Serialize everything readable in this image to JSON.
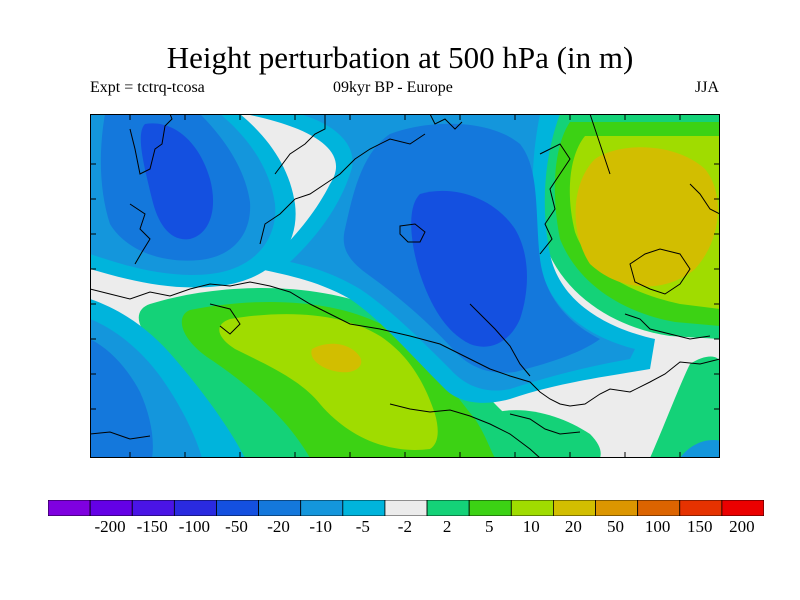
{
  "title": "Height perturbation at 500 hPa (in m)",
  "subtitle_left": "Expt = tctrq-tcosa",
  "subtitle_center": "09kyr BP - Europe",
  "subtitle_right": "JJA",
  "colorbar": {
    "labels": [
      "-200",
      "-150",
      "-100",
      "-50",
      "-20",
      "-10",
      "-5",
      "-2",
      "2",
      "5",
      "10",
      "20",
      "50",
      "100",
      "150",
      "200"
    ],
    "colors": [
      "#7f00e0",
      "#6400e6",
      "#4a14e6",
      "#2a2ae0",
      "#1450e0",
      "#1478dc",
      "#1496dc",
      "#00b4dc",
      "#ececec",
      "#14d278",
      "#3cd214",
      "#a0dc00",
      "#d2be00",
      "#dc9600",
      "#dc6400",
      "#e63200",
      "#eb0000"
    ]
  },
  "chart_data": {
    "type": "heatmap",
    "title": "Height perturbation at 500 hPa (in m)",
    "region": "Europe",
    "period": "09kyr BP",
    "season": "JJA",
    "experiment": "tctrq-tcosa",
    "unit": "m",
    "contour_levels": [
      -200,
      -150,
      -100,
      -50,
      -20,
      -10,
      -5,
      -2,
      2,
      5,
      10,
      20,
      50,
      100,
      150,
      200
    ],
    "features": [
      {
        "area": "north-east (western Russia)",
        "range": "20 to 50",
        "sign": "positive"
      },
      {
        "area": "central Atlantic / Iberia",
        "range": "10 to 20, local 20 to 50",
        "sign": "positive"
      },
      {
        "area": "central-eastern Europe",
        "range": "-50 to -20",
        "sign": "negative"
      },
      {
        "area": "north Atlantic / Iceland",
        "range": "-50 to -20",
        "sign": "negative"
      }
    ]
  }
}
